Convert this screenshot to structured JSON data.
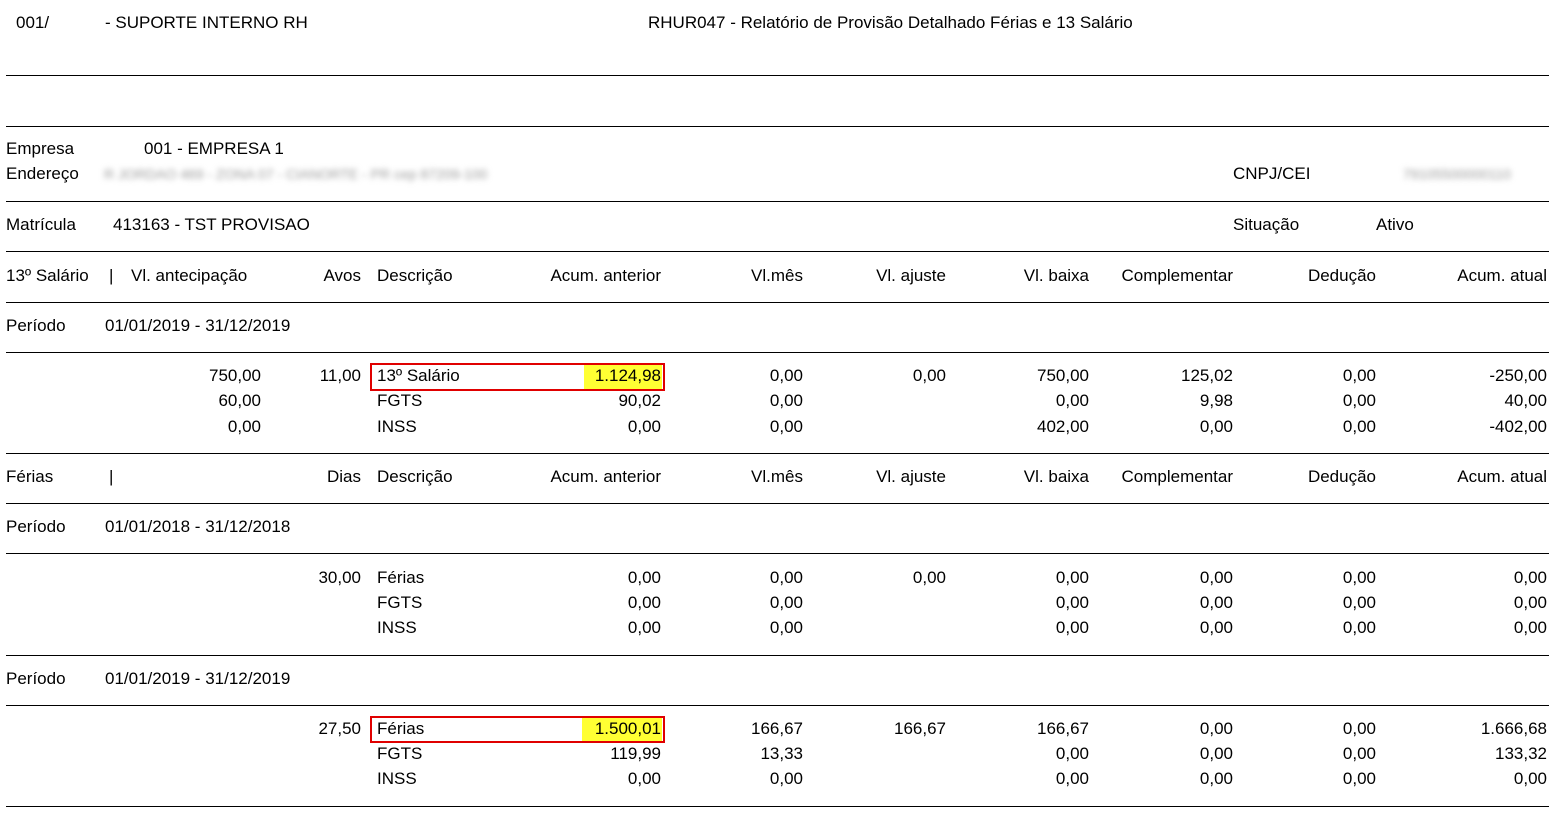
{
  "header": {
    "code": "001/",
    "department": "- SUPORTE INTERNO RH",
    "report_title": "RHUR047 - Relatório de Provisão Detalhado Férias e 13 Salário"
  },
  "company": {
    "label": "Empresa",
    "value": "001 - EMPRESA 1",
    "address_label": "Endereço",
    "address_value": "R JORDAO 469 - ZONA 07 - CIANORTE - PR cep 87209-100",
    "cnpj_label": "CNPJ/CEI",
    "cnpj_value": "79105500000110"
  },
  "employee": {
    "label": "Matrícula",
    "value": "413163 - TST PROVISAO",
    "status_label": "Situação",
    "status_value": "Ativo"
  },
  "salary13": {
    "columns": {
      "section": "13º Salário",
      "sep": "|",
      "antecipacao": "Vl. antecipação",
      "qty": "Avos",
      "descricao": "Descrição",
      "acum_ant": "Acum. anterior",
      "vlmes": "Vl.mês",
      "ajuste": "Vl. ajuste",
      "baixa": "Vl. baixa",
      "compl": "Complementar",
      "deducao": "Dedução",
      "acum_atual": "Acum. atual"
    },
    "period_label": "Período",
    "period": "01/01/2019 - 31/12/2019",
    "rows": [
      {
        "antecipacao": "750,00",
        "qty": "11,00",
        "descricao": "13º Salário",
        "acum_ant": "1.124,98",
        "vlmes": "0,00",
        "ajuste": "0,00",
        "baixa": "750,00",
        "compl": "125,02",
        "deducao": "0,00",
        "acum_atual": "-250,00"
      },
      {
        "antecipacao": "60,00",
        "qty": "",
        "descricao": "FGTS",
        "acum_ant": "90,02",
        "vlmes": "0,00",
        "ajuste": "",
        "baixa": "0,00",
        "compl": "9,98",
        "deducao": "0,00",
        "acum_atual": "40,00"
      },
      {
        "antecipacao": "0,00",
        "qty": "",
        "descricao": "INSS",
        "acum_ant": "0,00",
        "vlmes": "0,00",
        "ajuste": "",
        "baixa": "402,00",
        "compl": "0,00",
        "deducao": "0,00",
        "acum_atual": "-402,00"
      }
    ]
  },
  "ferias": {
    "columns": {
      "section": "Férias",
      "sep": "|",
      "qty": "Dias",
      "descricao": "Descrição",
      "acum_ant": "Acum. anterior",
      "vlmes": "Vl.mês",
      "ajuste": "Vl. ajuste",
      "baixa": "Vl. baixa",
      "compl": "Complementar",
      "deducao": "Dedução",
      "acum_atual": "Acum. atual"
    },
    "periods": [
      {
        "label": "Período",
        "period": "01/01/2018 - 31/12/2018",
        "rows": [
          {
            "qty": "30,00",
            "descricao": "Férias",
            "acum_ant": "0,00",
            "vlmes": "0,00",
            "ajuste": "0,00",
            "baixa": "0,00",
            "compl": "0,00",
            "deducao": "0,00",
            "acum_atual": "0,00"
          },
          {
            "qty": "",
            "descricao": "FGTS",
            "acum_ant": "0,00",
            "vlmes": "0,00",
            "ajuste": "",
            "baixa": "0,00",
            "compl": "0,00",
            "deducao": "0,00",
            "acum_atual": "0,00"
          },
          {
            "qty": "",
            "descricao": "INSS",
            "acum_ant": "0,00",
            "vlmes": "0,00",
            "ajuste": "",
            "baixa": "0,00",
            "compl": "0,00",
            "deducao": "0,00",
            "acum_atual": "0,00"
          }
        ]
      },
      {
        "label": "Período",
        "period": "01/01/2019 - 31/12/2019",
        "rows": [
          {
            "qty": "27,50",
            "descricao": "Férias",
            "acum_ant": "1.500,01",
            "vlmes": "166,67",
            "ajuste": "166,67",
            "baixa": "166,67",
            "compl": "0,00",
            "deducao": "0,00",
            "acum_atual": "1.666,68"
          },
          {
            "qty": "",
            "descricao": "FGTS",
            "acum_ant": "119,99",
            "vlmes": "13,33",
            "ajuste": "",
            "baixa": "0,00",
            "compl": "0,00",
            "deducao": "0,00",
            "acum_atual": "133,32"
          },
          {
            "qty": "",
            "descricao": "INSS",
            "acum_ant": "0,00",
            "vlmes": "0,00",
            "ajuste": "",
            "baixa": "0,00",
            "compl": "0,00",
            "deducao": "0,00",
            "acum_atual": "0,00"
          }
        ]
      }
    ]
  },
  "highlight_color": "#ffff33",
  "annotation_color": "#e00000"
}
